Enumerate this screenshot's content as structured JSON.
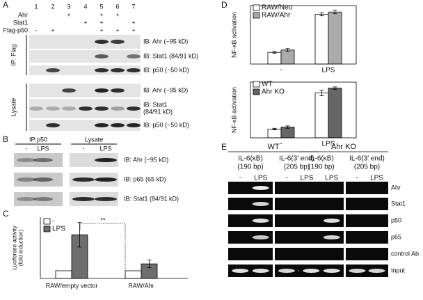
{
  "panel_labels": [
    "A",
    "B",
    "C",
    "D",
    "E"
  ],
  "panel_a": {
    "lanes": [
      "1",
      "2",
      "3",
      "4",
      "5",
      "6",
      "7"
    ],
    "treatments": [
      {
        "label": "Ahr",
        "marks": [
          null,
          null,
          "+",
          null,
          "+",
          "+",
          null
        ]
      },
      {
        "label": "Stat1",
        "marks": [
          null,
          null,
          null,
          "+",
          "+",
          null,
          "+"
        ]
      },
      {
        "label": "Flag-p50",
        "marks": [
          "-",
          "+",
          null,
          null,
          "+",
          "+",
          "+"
        ]
      }
    ],
    "groups": [
      {
        "label": "IP: Flag",
        "blots": [
          [
            "IB: Ahr (~95 kD)"
          ],
          [
            "IB: Stat1 (84/91 kD)"
          ],
          [
            "IB: p50 (~50 kD)"
          ]
        ]
      },
      {
        "label": "Lysate",
        "blots": [
          [
            "IB: Ahr (~95 kD)"
          ],
          [
            "IB: Stat1",
            "(84/91 kD)"
          ],
          [
            "IB: p50 (~50 kD)"
          ]
        ]
      }
    ]
  },
  "panel_b": {
    "columns": [
      {
        "label": "IP:p50",
        "lanes": [
          "-",
          "LPS"
        ]
      },
      {
        "label": "Lysate",
        "lanes": [
          "-",
          "LPS"
        ]
      }
    ],
    "blots": [
      "IB: Ahr (~95 kD)",
      "IB: p65 (65 kD)",
      "IB: Stat1 (84/91 kD)"
    ]
  },
  "chart_data": [
    {
      "type": "bar",
      "y_label": [
        "Luciferase activity",
        "(fold induction)"
      ],
      "categories": [
        "RAW/empty vector",
        "RAW/Ahr"
      ],
      "series": [
        {
          "name": "-",
          "color": "#ffffff",
          "values": [
            1,
            1
          ]
        },
        {
          "name": "LPS",
          "color": "#6e6e6e",
          "values": [
            5.7,
            1.9
          ],
          "errors": [
            1.6,
            0.5
          ]
        }
      ],
      "ylim": [
        0,
        8
      ],
      "annotation": "**"
    },
    {
      "type": "bar",
      "y_label": [
        "NF-κB activation"
      ],
      "categories": [
        "-",
        "LPS"
      ],
      "series": [
        {
          "name": "RAW/Neo",
          "color": "#ffffff",
          "values": [
            0.4,
            1.7
          ],
          "errors": [
            0.03,
            0.05
          ]
        },
        {
          "name": "RAW/Ahr",
          "color": "#ababab",
          "values": [
            0.48,
            1.78
          ],
          "errors": [
            0.05,
            0.06
          ]
        }
      ],
      "ylim": [
        0,
        2
      ]
    },
    {
      "type": "bar",
      "y_label": [
        "NF-κB activation"
      ],
      "categories": [
        "-",
        "LPS"
      ],
      "series": [
        {
          "name": "WT",
          "color": "#ffffff",
          "values": [
            0.22,
            1.13
          ],
          "errors": [
            0.02,
            0.07
          ]
        },
        {
          "name": "Ahr KO",
          "color": "#666666",
          "values": [
            0.27,
            1.25
          ],
          "errors": [
            0.03,
            0.03
          ]
        }
      ],
      "ylim": [
        0,
        1.4
      ]
    }
  ],
  "panel_e": {
    "groups": [
      {
        "label": "WT",
        "assays": [
          {
            "label": [
              "IL-6(κB)",
              "(190 bp)"
            ],
            "lanes": [
              "-",
              "LPS"
            ]
          },
          {
            "label": [
              "IL-6(3′ end)",
              "(205 bp)"
            ],
            "lanes": [
              "-",
              "LPS"
            ]
          }
        ]
      },
      {
        "label": "Ahr KO",
        "assays": [
          {
            "label": [
              "IL-6(κB)",
              "(190 bp)"
            ],
            "lanes": [
              "-",
              "LPS"
            ]
          },
          {
            "label": [
              "IL-6(3′ end)",
              "(205 bp)"
            ],
            "lanes": [
              "-",
              "LPS"
            ]
          }
        ]
      }
    ],
    "rows": [
      "Ahr",
      "Stat1",
      "p50",
      "p65",
      "control Ab",
      "Input"
    ]
  }
}
